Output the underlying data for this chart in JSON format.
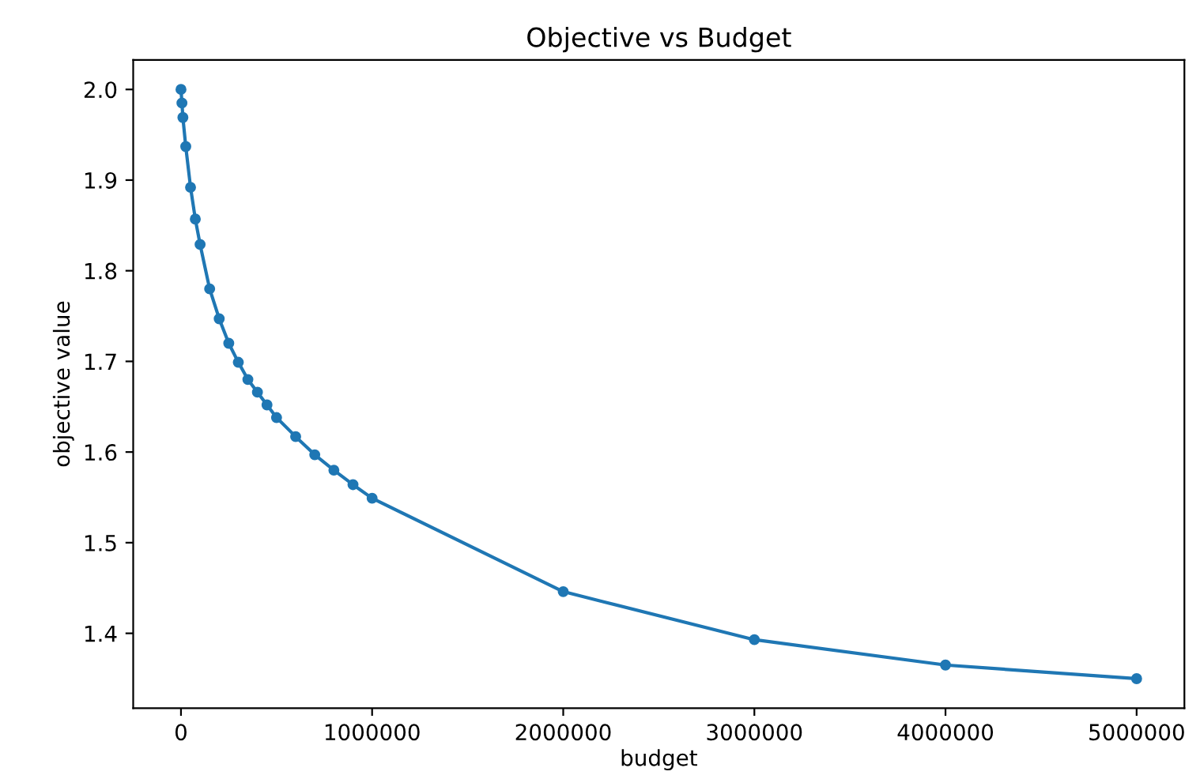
{
  "chart_data": {
    "type": "line",
    "title": "Objective vs Budget",
    "xlabel": "budget",
    "ylabel": "objective value",
    "x": [
      0,
      5000,
      10000,
      25000,
      50000,
      75000,
      100000,
      150000,
      200000,
      250000,
      300000,
      350000,
      400000,
      450000,
      500000,
      600000,
      700000,
      800000,
      900000,
      1000000,
      2000000,
      3000000,
      4000000,
      5000000
    ],
    "series": [
      {
        "color": "#1f77b4",
        "values": [
          2.0,
          1.985,
          1.969,
          1.937,
          1.892,
          1.857,
          1.829,
          1.78,
          1.747,
          1.72,
          1.699,
          1.68,
          1.666,
          1.652,
          1.638,
          1.617,
          1.597,
          1.58,
          1.564,
          1.549,
          1.446,
          1.393,
          1.365,
          1.35
        ]
      }
    ],
    "xlim": [
      -250000,
      5250000
    ],
    "ylim": [
      1.3175,
      2.0325
    ],
    "xticks": [
      0,
      1000000,
      2000000,
      3000000,
      4000000,
      5000000
    ],
    "yticks": [
      {
        "value": 1.4,
        "label": "1.4"
      },
      {
        "value": 1.5,
        "label": "1.5"
      },
      {
        "value": 1.6,
        "label": "1.6"
      },
      {
        "value": 1.7,
        "label": "1.7"
      },
      {
        "value": 1.8,
        "label": "1.8"
      },
      {
        "value": 1.9,
        "label": "1.9"
      },
      {
        "value": 2.0,
        "label": "2.0"
      }
    ],
    "marker": "circle",
    "line_style": "solid",
    "grid": false,
    "legend": false
  }
}
